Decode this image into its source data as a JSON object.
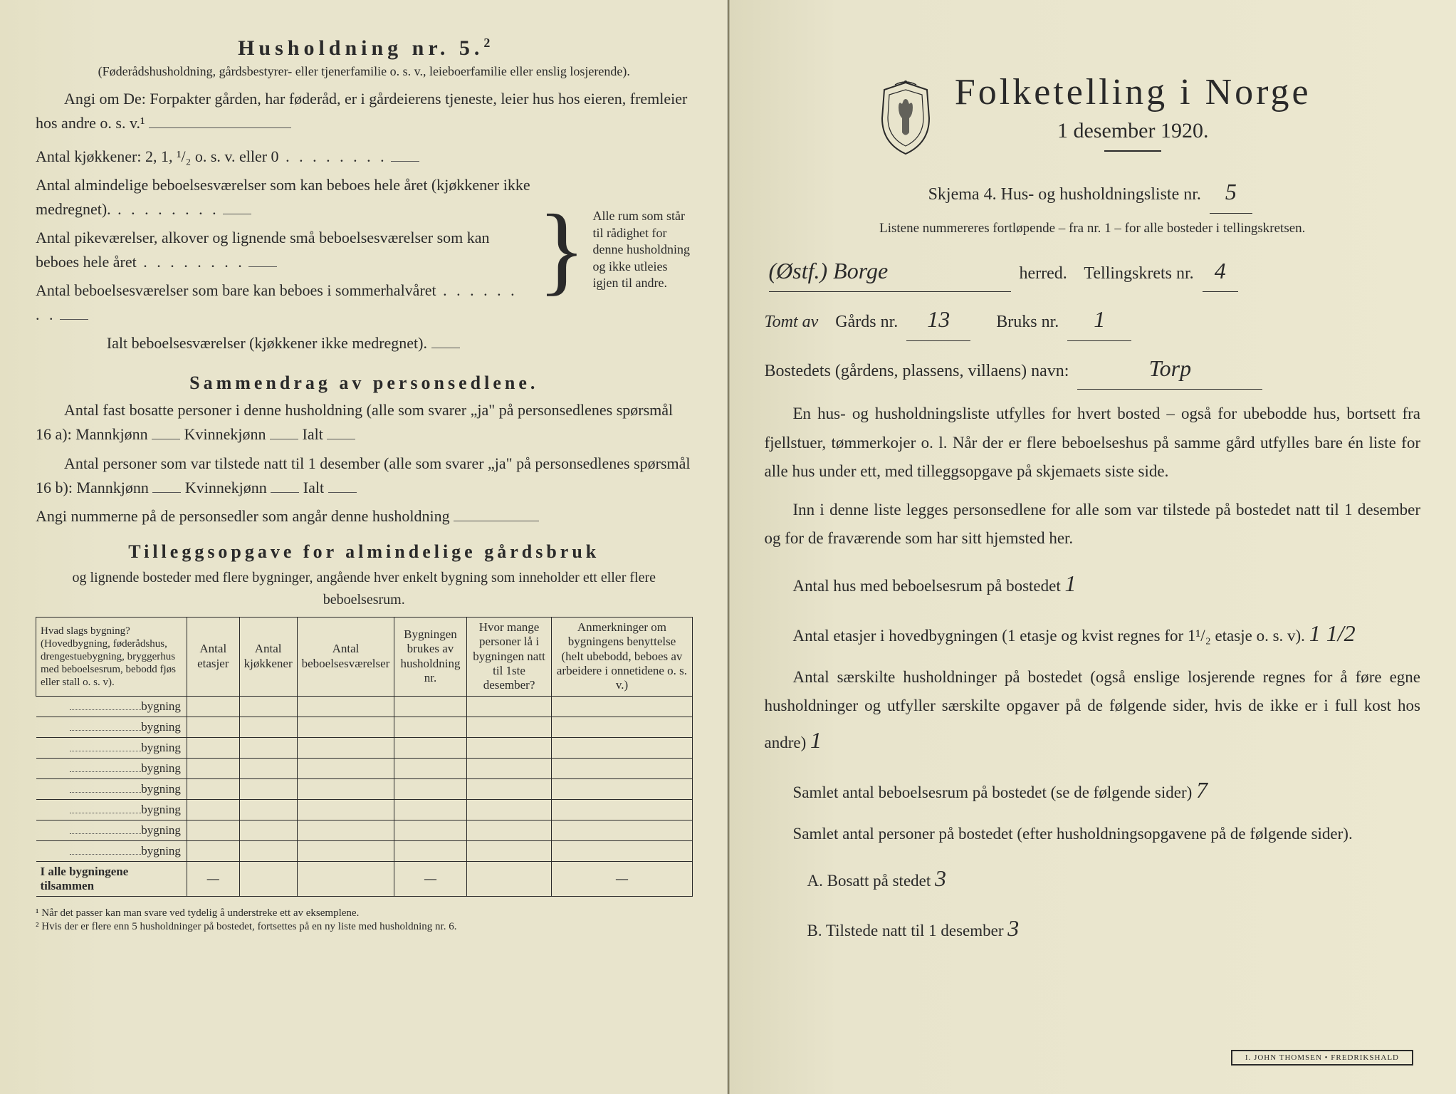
{
  "left": {
    "title": "Husholdning nr. 5.",
    "title_sup": "2",
    "subtitle": "(Føderådshusholdning, gårdsbestyrer- eller tjenerfamilie o. s. v., leieboerfamilie eller enslig losjerende).",
    "angi_om_de": "Angi om De: Forpakter gården, har føderåd, er i gårdeierens tjeneste, leier hus hos eieren, fremleier hos andre o. s. v.¹",
    "kitchens": "Antal kjøkkener: 2, 1, ¹/₂ o. s. v. eller 0",
    "rooms1": "Antal almindelige beboelsesværelser som kan beboes hele året (kjøkkener ikke medregnet).",
    "rooms2": "Antal pikeværelser, alkover og lignende små beboelsesværelser som kan beboes hele året",
    "rooms3": "Antal beboelsesværelser som bare kan beboes i sommerhalvåret",
    "rooms_total": "Ialt beboelsesværelser (kjøkkener ikke medregnet).",
    "brace_text": "Alle rum som står til rådighet for denne husholdning og ikke utleies igjen til andre.",
    "section_sammendrag": "Sammendrag av personsedlene.",
    "sammendrag1": "Antal fast bosatte personer i denne husholdning (alle som svarer „ja\" på personsedlenes spørsmål 16 a): Mannkjønn",
    "kvinn": "Kvinnekjønn",
    "ialt": "Ialt",
    "sammendrag2": "Antal personer som var tilstede natt til 1 desember (alle som svarer „ja\" på personsedlenes spørsmål 16 b): Mannkjønn",
    "sammendrag3": "Angi nummerne på de personsedler som angår denne husholdning",
    "section_tillegg": "Tilleggsopgave for almindelige gårdsbruk",
    "tillegg_sub": "og lignende bosteder med flere bygninger, angående hver enkelt bygning som inneholder ett eller flere beboelsesrum.",
    "table": {
      "headers": [
        "Hvad slags bygning? (Hovedbygning, føderådshus, drengestuebygning, bryggerhus med beboelsesrum, bebodd fjøs eller stall o. s. v).",
        "Antal etasjer",
        "Antal kjøkkener",
        "Antal beboelsesværelser",
        "Bygningen brukes av husholdning nr.",
        "Hvor mange personer lå i bygningen natt til 1ste desember?",
        "Anmerkninger om bygningens benyttelse (helt ubebodd, beboes av arbeidere i onnetidene o. s. v.)"
      ],
      "row_label": "bygning",
      "row_count": 8,
      "total_label": "I alle bygningene tilsammen"
    },
    "footnote1": "¹  Når det passer kan man svare ved tydelig å understreke ett av eksemplene.",
    "footnote2": "²  Hvis der er flere enn 5 husholdninger på bostedet, fortsettes på en ny liste med husholdning nr. 6."
  },
  "right": {
    "main_title": "Folketelling i Norge",
    "subtitle": "1 desember 1920.",
    "skjema_line": "Skjema 4.  Hus- og husholdningsliste nr.",
    "liste_nr": "5",
    "listene_note": "Listene nummereres fortløpende – fra nr. 1 – for alle bosteder i tellingskretsen.",
    "herred_prefix": "(Østf.)  Borge",
    "herred_label": "herred.",
    "tellingskrets_label": "Tellingskrets nr.",
    "tellingskrets_nr": "4",
    "tomt_av": "Tomt av",
    "gards_label": "Gårds nr.",
    "gards_nr": "13",
    "bruks_label": "Bruks nr.",
    "bruks_nr": "1",
    "bosted_label": "Bostedets (gårdens, plassens, villaens) navn:",
    "bosted_navn": "Torp",
    "para1": "En hus- og husholdningsliste utfylles for hvert bosted – også for ubebodde hus, bortsett fra fjellstuer, tømmerkojer o. l.  Når der er flere beboelseshus på samme gård utfylles bare én liste for alle hus under ett, med tilleggsopgave på skjemaets siste side.",
    "para2": "Inn i denne liste legges personsedlene for alle som var tilstede på bostedet natt til 1 desember og for de fraværende som har sitt hjemsted her.",
    "antal_hus_label": "Antal hus med beboelsesrum på bostedet",
    "antal_hus": "1",
    "antal_etasjer_label_a": "Antal etasjer i hovedbygningen (1 etasje og kvist regnes for 1¹/₂ etasje o. s. v).",
    "antal_etasjer": "1 1/2",
    "antal_hush_label": "Antal særskilte husholdninger på bostedet (også enslige losjerende regnes for å føre egne husholdninger og utfyller særskilte opgaver på de følgende sider, hvis de ikke er i full kost hos andre)",
    "antal_hush": "1",
    "samlet_rum_label": "Samlet antal beboelsesrum på bostedet (se de følgende sider)",
    "samlet_rum": "7",
    "samlet_pers_label": "Samlet antal personer på bostedet (efter husholdningsopgavene på de følgende sider).",
    "a_label": "A.  Bosatt på stedet",
    "a_val": "3",
    "b_label": "B.  Tilstede natt til 1 desember",
    "b_val": "3",
    "stamp": "I. JOHN THOMSEN • FREDRIKSHALD"
  },
  "colors": {
    "paper": "#e8e4cc",
    "ink": "#2a2a2a",
    "hand": "#2a2a2a"
  }
}
